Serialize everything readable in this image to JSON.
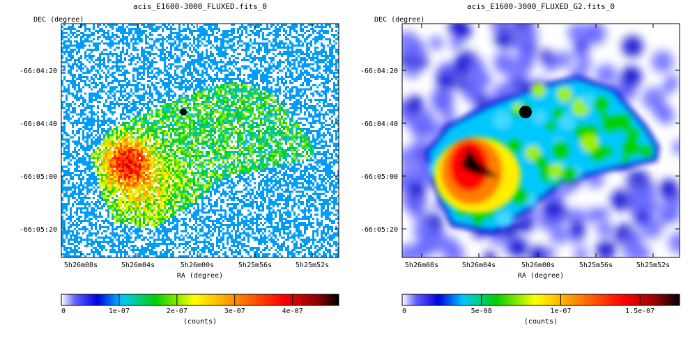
{
  "chart_data": [
    {
      "type": "heatmap",
      "title": "acis_E1600-3000_FLUXED.fits_0",
      "xlabel": "RA (degree)",
      "ylabel": "DEC (degree)",
      "x_ticks": [
        "5h26m08s",
        "5h26m04s",
        "5h26m00s",
        "5h25m56s",
        "5h25m52s"
      ],
      "y_ticks": [
        "-66:04:20",
        "-66:04:40",
        "-66:05:00",
        "-66:05:20"
      ],
      "colorbar": {
        "label": "(counts)",
        "ticks": [
          "0",
          "1e-07",
          "2e-07",
          "3e-07",
          "4e-07"
        ],
        "tick_values": [
          0,
          1e-07,
          2e-07,
          3e-07,
          4e-07
        ],
        "range": [
          0,
          4.8e-07
        ]
      },
      "style": "sparse-pixel"
    },
    {
      "type": "heatmap",
      "title": "acis_E1600-3000_FLUXED_G2.fits_0",
      "xlabel": "RA (degree)",
      "ylabel": "DEC (degree)",
      "x_ticks": [
        "5h26m08s",
        "5h26m04s",
        "5h26m00s",
        "5h25m56s",
        "5h25m52s"
      ],
      "y_ticks": [
        "-66:04:20",
        "-66:04:40",
        "-66:05:00",
        "-66:05:20"
      ],
      "colorbar": {
        "label": "(counts)",
        "ticks": [
          "0",
          "5e-08",
          "1e-07",
          "1.5e-07"
        ],
        "tick_values": [
          0,
          5e-08,
          1e-07,
          1.5e-07
        ],
        "range": [
          0,
          1.75e-07
        ]
      },
      "style": "smoothed"
    }
  ],
  "colormap": [
    "#ffffff",
    "#0000c8",
    "#00c8ff",
    "#00d000",
    "#ffff00",
    "#ff8000",
    "#ff0000",
    "#900000",
    "#000000"
  ]
}
